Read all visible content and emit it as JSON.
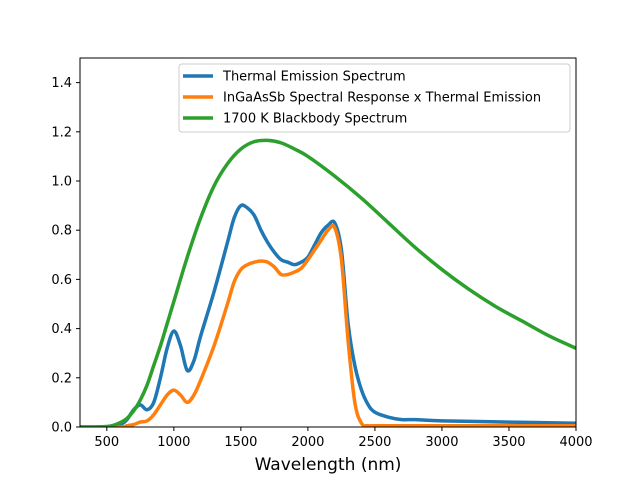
{
  "chart_data": {
    "type": "line",
    "title": "",
    "xlabel": "Wavelength (nm)",
    "ylabel": "",
    "xlim": [
      300,
      4000
    ],
    "ylim": [
      0,
      1.5
    ],
    "xticks": [
      500,
      1000,
      1500,
      2000,
      2500,
      3000,
      3500,
      4000
    ],
    "yticks": [
      0.0,
      0.2,
      0.4,
      0.6,
      0.8,
      1.0,
      1.2,
      1.4
    ],
    "grid": false,
    "legend_position": "top-right",
    "series": [
      {
        "name": "Thermal Emission Spectrum",
        "color": "#1f77b4",
        "x": [
          300,
          500,
          600,
          650,
          700,
          750,
          800,
          850,
          900,
          950,
          1000,
          1050,
          1100,
          1150,
          1200,
          1300,
          1400,
          1450,
          1500,
          1550,
          1600,
          1650,
          1700,
          1750,
          1800,
          1850,
          1900,
          1950,
          2000,
          2050,
          2100,
          2150,
          2200,
          2250,
          2300,
          2350,
          2400,
          2450,
          2500,
          2600,
          2700,
          2800,
          3000,
          3500,
          4000
        ],
        "y": [
          0.0,
          0.0,
          0.01,
          0.03,
          0.07,
          0.09,
          0.07,
          0.1,
          0.2,
          0.32,
          0.39,
          0.33,
          0.23,
          0.27,
          0.37,
          0.55,
          0.75,
          0.85,
          0.9,
          0.89,
          0.86,
          0.8,
          0.75,
          0.71,
          0.68,
          0.67,
          0.66,
          0.67,
          0.69,
          0.74,
          0.79,
          0.82,
          0.83,
          0.72,
          0.42,
          0.25,
          0.15,
          0.09,
          0.06,
          0.04,
          0.03,
          0.03,
          0.025,
          0.02,
          0.015
        ]
      },
      {
        "name": "InGaAsSb Spectral Response x Thermal Emission",
        "color": "#ff7f0e",
        "x": [
          300,
          600,
          650,
          700,
          750,
          800,
          850,
          900,
          950,
          1000,
          1050,
          1100,
          1150,
          1200,
          1300,
          1400,
          1450,
          1500,
          1550,
          1600,
          1650,
          1700,
          1750,
          1800,
          1850,
          1900,
          1950,
          2000,
          2050,
          2100,
          2150,
          2200,
          2250,
          2300,
          2350,
          2400,
          2450,
          2500,
          3000,
          3500,
          4000
        ],
        "y": [
          0.0,
          0.0,
          0.005,
          0.01,
          0.02,
          0.025,
          0.05,
          0.09,
          0.13,
          0.15,
          0.13,
          0.1,
          0.13,
          0.19,
          0.33,
          0.5,
          0.59,
          0.64,
          0.66,
          0.67,
          0.675,
          0.67,
          0.65,
          0.62,
          0.62,
          0.63,
          0.645,
          0.68,
          0.72,
          0.76,
          0.8,
          0.81,
          0.68,
          0.35,
          0.1,
          0.015,
          0.005,
          0.005,
          0.005,
          0.005,
          0.005
        ]
      },
      {
        "name": "1700 K Blackbody Spectrum",
        "color": "#2ca02c",
        "x": [
          300,
          400,
          500,
          550,
          600,
          650,
          700,
          750,
          800,
          850,
          900,
          950,
          1000,
          1100,
          1200,
          1300,
          1400,
          1500,
          1600,
          1700,
          1800,
          1900,
          2000,
          2200,
          2400,
          2600,
          2800,
          3000,
          3200,
          3400,
          3600,
          3800,
          4000
        ],
        "y": [
          0.0,
          0.0,
          0.002,
          0.007,
          0.018,
          0.035,
          0.065,
          0.11,
          0.17,
          0.25,
          0.33,
          0.42,
          0.51,
          0.69,
          0.85,
          0.98,
          1.07,
          1.13,
          1.16,
          1.165,
          1.155,
          1.13,
          1.1,
          1.02,
          0.93,
          0.83,
          0.73,
          0.64,
          0.56,
          0.49,
          0.43,
          0.37,
          0.32
        ]
      }
    ]
  }
}
